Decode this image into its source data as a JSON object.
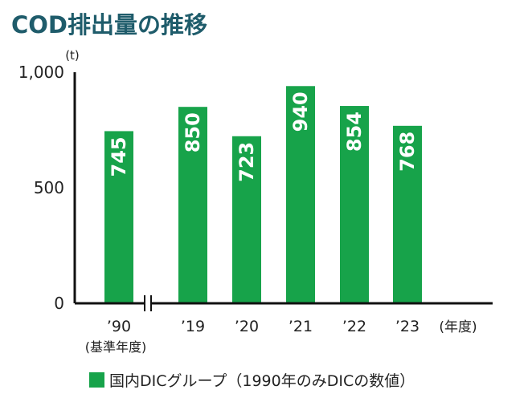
{
  "title": "COD排出量の推移",
  "colors": {
    "bar": "#17a34a",
    "title": "#1f5c6b",
    "axis": "#111111",
    "text": "#222222"
  },
  "chart_data": {
    "type": "bar",
    "unit_label": "(t)",
    "categories": [
      "’90",
      "’19",
      "’20",
      "’21",
      "’22",
      "’23"
    ],
    "base_year_note": "(基準年度)",
    "x_unit_label": "(年度)",
    "values": [
      745,
      850,
      723,
      940,
      854,
      768
    ],
    "data_labels": [
      "745",
      "850",
      "723",
      "940",
      "854",
      "768"
    ],
    "y_ticks": [
      "1,000",
      "500",
      "0"
    ],
    "y_tick_values": [
      1000,
      500,
      0
    ],
    "ylim": [
      0,
      1000
    ],
    "axis_break_after_first": true,
    "grid": false,
    "legend_position": "bottom",
    "series": [
      {
        "name": "国内DICグループ（1990年のみDICの数値）",
        "values": [
          745,
          850,
          723,
          940,
          854,
          768
        ]
      }
    ]
  }
}
